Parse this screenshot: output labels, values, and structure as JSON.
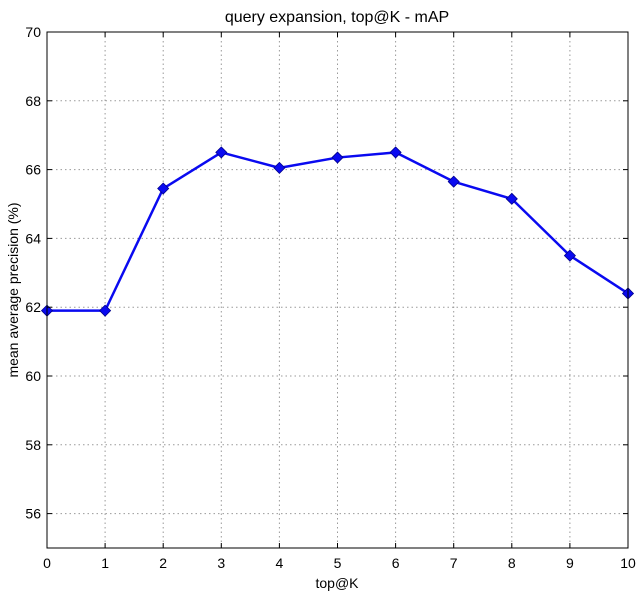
{
  "chart_data": {
    "type": "line",
    "title": "query expansion, top@K - mAP",
    "xlabel": "top@K",
    "ylabel": "mean average precision (%)",
    "x": [
      0,
      1,
      2,
      3,
      4,
      5,
      6,
      7,
      8,
      9,
      10
    ],
    "xlim": [
      0,
      10
    ],
    "ylim": [
      55,
      70
    ],
    "xticks": [
      "0",
      "1",
      "2",
      "3",
      "4",
      "5",
      "6",
      "7",
      "8",
      "9",
      "10"
    ],
    "yticks": [
      "56",
      "58",
      "60",
      "62",
      "64",
      "66",
      "68",
      "70"
    ],
    "grid": true,
    "series": [
      {
        "values": [
          61.9,
          61.9,
          65.45,
          66.5,
          66.05,
          66.35,
          66.5,
          65.65,
          65.15,
          63.5,
          62.4
        ],
        "color": "#0a0af0",
        "marker": "diamond"
      }
    ]
  }
}
